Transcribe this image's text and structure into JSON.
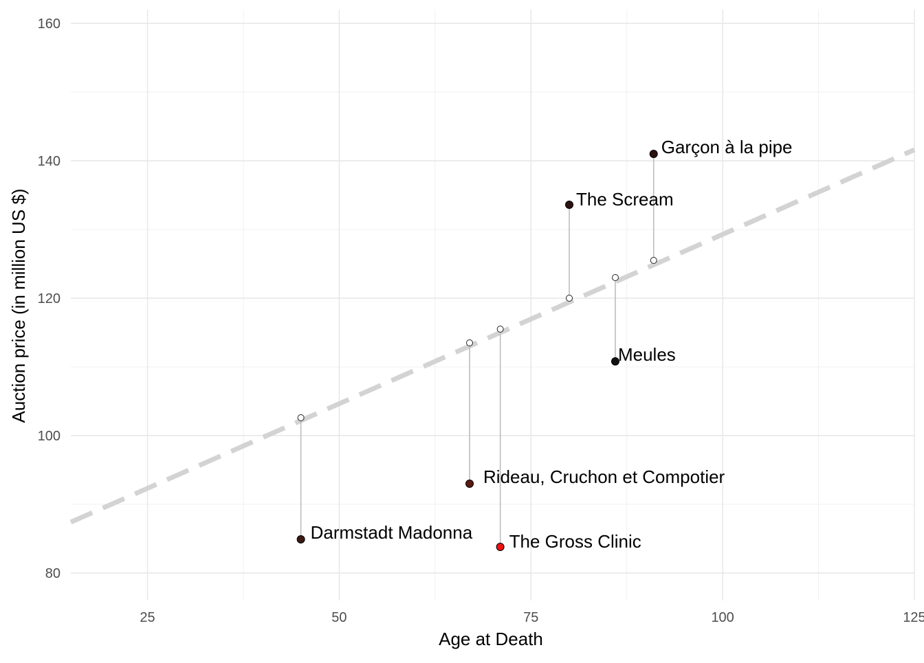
{
  "chart_data": {
    "type": "scatter",
    "title": "",
    "xlabel": "Age at Death",
    "ylabel": "Auction price (in million US $)",
    "xlim": [
      15,
      125
    ],
    "ylim": [
      76,
      162
    ],
    "x_ticks": [
      25,
      50,
      75,
      100,
      125
    ],
    "y_ticks": [
      80,
      100,
      120,
      140,
      160
    ],
    "grid": true,
    "trend_line": {
      "style": "dashed",
      "color": "#d3d3d3",
      "x_start": 15,
      "y_start": 87.4,
      "x_end": 125,
      "y_end": 141.6
    },
    "points": [
      {
        "label": "Darmstadt Madonna",
        "x": 45,
        "y": 84.9,
        "fitted": 102.6,
        "color": "#3a1a12"
      },
      {
        "label": "Rideau, Cruchon et Compotier",
        "x": 67,
        "y": 93.0,
        "fitted": 113.5,
        "color": "#5a1a10"
      },
      {
        "label": "The Gross Clinic",
        "x": 71,
        "y": 83.8,
        "fitted": 115.5,
        "color": "#ee1111"
      },
      {
        "label": "The Scream",
        "x": 80,
        "y": 133.6,
        "fitted": 120.0,
        "color": "#2a1210"
      },
      {
        "label": "Meules",
        "x": 86,
        "y": 110.8,
        "fitted": 123.0,
        "color": "#111111"
      },
      {
        "label": "Garçon à la pipe",
        "x": 91,
        "y": 141.0,
        "fitted": 125.5,
        "color": "#2a1210"
      }
    ]
  }
}
